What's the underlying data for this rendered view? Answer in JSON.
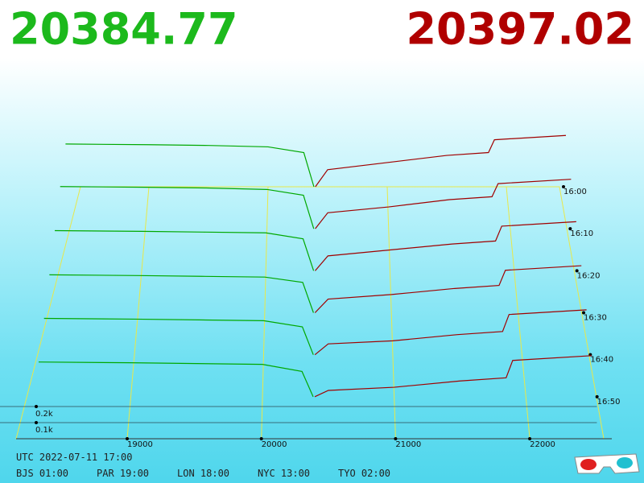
{
  "chart_data": {
    "type": "depth3d",
    "bid_price": 20384.77,
    "ask_price": 20397.02,
    "bid_color": "#00a800",
    "ask_color": "#a00000",
    "xlim": [
      18300,
      22500
    ],
    "xticks": [
      19000,
      20000,
      21000,
      22000
    ],
    "yticks": [
      {
        "value": 100,
        "label": "0.1k"
      },
      {
        "value": 200,
        "label": "0.2k"
      }
    ],
    "bid_prices": [
      18300,
      19000,
      19500,
      20000,
      20300,
      20384.77
    ],
    "ask_prices": [
      20397.02,
      20500,
      21000,
      21500,
      21850,
      21900,
      22500
    ],
    "series": [
      {
        "name": "16:00",
        "bid": [
          300,
          295,
          290,
          280,
          240,
          0
        ],
        "ask": [
          0,
          120,
          170,
          220,
          240,
          330,
          360
        ]
      },
      {
        "name": "16:10",
        "bid": [
          290,
          285,
          280,
          270,
          230,
          0
        ],
        "ask": [
          0,
          110,
          150,
          200,
          220,
          310,
          340
        ]
      },
      {
        "name": "16:20",
        "bid": [
          270,
          265,
          260,
          255,
          215,
          0
        ],
        "ask": [
          0,
          100,
          140,
          180,
          200,
          300,
          330
        ]
      },
      {
        "name": "16:30",
        "bid": [
          250,
          245,
          240,
          235,
          200,
          0
        ],
        "ask": [
          0,
          90,
          120,
          160,
          180,
          280,
          310
        ]
      },
      {
        "name": "16:40",
        "bid": [
          235,
          230,
          225,
          220,
          180,
          0
        ],
        "ask": [
          0,
          70,
          90,
          130,
          150,
          260,
          290
        ]
      },
      {
        "name": "16:50",
        "bid": [
          220,
          215,
          210,
          205,
          160,
          0
        ],
        "ask": [
          0,
          40,
          60,
          100,
          120,
          230,
          260
        ]
      }
    ],
    "footer": {
      "utc": "UTC 2022-07-11 17:00",
      "cities": [
        "BJS 01:00",
        "PAR 19:00",
        "LON 18:00",
        "NYC 13:00",
        "TYO 02:00"
      ]
    }
  }
}
